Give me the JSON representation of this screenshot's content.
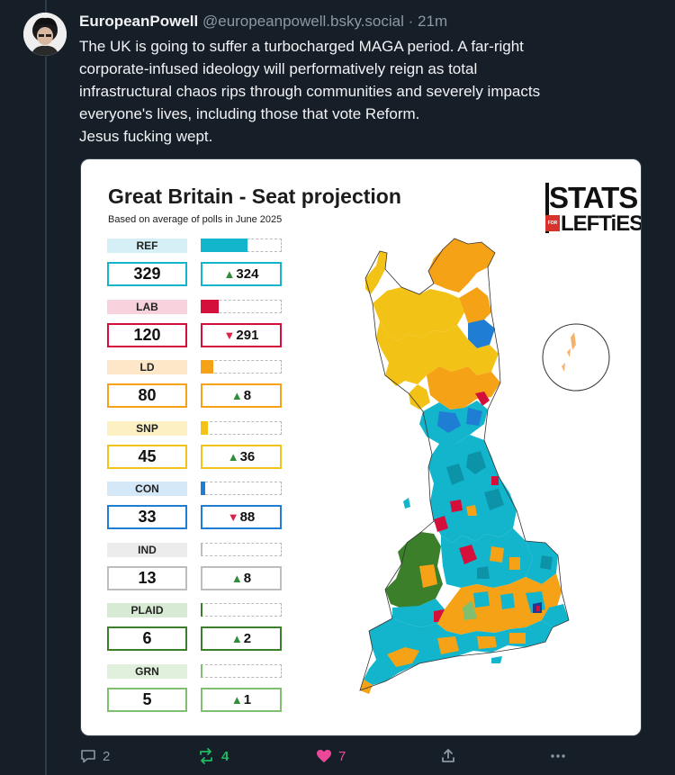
{
  "post": {
    "display_name": "EuropeanPowell",
    "handle": "@europeanpowell.bsky.social",
    "separator": "·",
    "time": "21m",
    "lines": [
      "The UK is going to suffer a turbocharged MAGA period. A far-right",
      "corporate-infused ideology will performatively reign as total",
      "infrastructural chaos rips through communities and severely impacts",
      "everyone's lives, including those that vote Reform.",
      "Jesus fucking wept."
    ]
  },
  "card": {
    "title": "Great Britain - Seat projection",
    "subtitle": "Based on average of polls in June 2025",
    "logo_line1": "STATS",
    "logo_for": "FOR",
    "logo_line2": "LEFTiES",
    "parties": [
      {
        "name": "REF",
        "seats": "329",
        "change": "324",
        "dir": "up",
        "color": "#12b5cb",
        "light": "#d4f0f6",
        "fill": 0.58
      },
      {
        "name": "LAB",
        "seats": "120",
        "change": "291",
        "dir": "down",
        "color": "#d50f3c",
        "light": "#f7d2dc",
        "fill": 0.22
      },
      {
        "name": "LD",
        "seats": "80",
        "change": "8",
        "dir": "up",
        "color": "#f6a216",
        "light": "#fde7c8",
        "fill": 0.15
      },
      {
        "name": "SNP",
        "seats": "45",
        "change": "36",
        "dir": "up",
        "color": "#f2c316",
        "light": "#fdf1c4",
        "fill": 0.09
      },
      {
        "name": "CON",
        "seats": "33",
        "change": "88",
        "dir": "down",
        "color": "#1f7ed4",
        "light": "#d5e8f8",
        "fill": 0.06
      },
      {
        "name": "IND",
        "seats": "13",
        "change": "8",
        "dir": "up",
        "color": "#bdbdbd",
        "light": "#ececec",
        "fill": 0.025
      },
      {
        "name": "PLAID",
        "seats": "6",
        "change": "2",
        "dir": "up",
        "color": "#3c7f2a",
        "light": "#d7ead3",
        "fill": 0.012
      },
      {
        "name": "GRN",
        "seats": "5",
        "change": "1",
        "dir": "up",
        "color": "#7fbf6f",
        "light": "#e1f0dc",
        "fill": 0.01
      }
    ]
  },
  "actions": {
    "replies": "2",
    "reposts": "4",
    "likes": "7"
  },
  "colors": {
    "background": "#161e27",
    "muted": "#8b98a5",
    "repost_active": "#20bc61",
    "like_active": "#ec4899"
  }
}
